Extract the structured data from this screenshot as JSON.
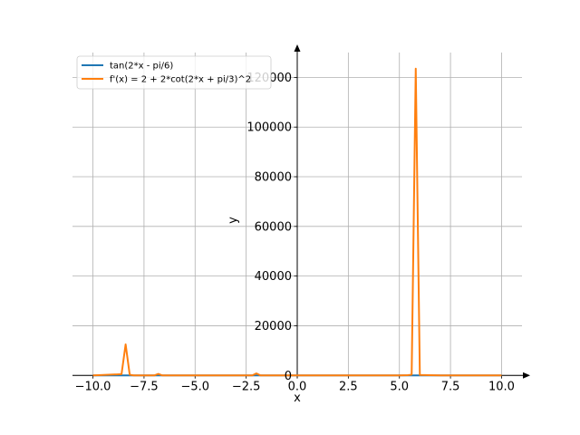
{
  "chart_data": {
    "type": "line",
    "xlabel": "x",
    "ylabel": "y",
    "xlim": [
      -11,
      11
    ],
    "ylim": [
      -1000,
      130000
    ],
    "grid": true,
    "legend_position": "top-left",
    "xticks": [
      -10.0,
      -7.5,
      -5.0,
      -2.5,
      0.0,
      2.5,
      5.0,
      7.5,
      10.0
    ],
    "xtick_labels": [
      "−10.0",
      "−7.5",
      "−5.0",
      "−2.5",
      "0.0",
      "2.5",
      "5.0",
      "7.5",
      "10.0"
    ],
    "yticks": [
      0,
      20000,
      40000,
      60000,
      80000,
      100000,
      120000
    ],
    "ytick_labels": [
      "0",
      "20000",
      "40000",
      "60000",
      "80000",
      "100000",
      "120000"
    ],
    "series": [
      {
        "name": "tan(2*x - pi/6)",
        "color": "#1f77b4",
        "x": [
          -10,
          -9,
          -8,
          -7,
          -6,
          -5,
          -4,
          -3,
          -2,
          -1,
          0,
          1,
          2,
          3,
          4,
          5,
          5.6,
          5.8,
          6,
          7,
          8,
          9,
          10
        ],
        "y": [
          0,
          0,
          0,
          0,
          0,
          0,
          0,
          0,
          0,
          0,
          0,
          0,
          0,
          0,
          0,
          0,
          0,
          0,
          0,
          0,
          0,
          0,
          0
        ]
      },
      {
        "name": "f'(x) = 2 + 2*cot(2*x + pi/3)^2",
        "color": "#ff7f0e",
        "x": [
          -10,
          -8.6,
          -8.4,
          -8.2,
          -8.0,
          -7.0,
          -6.8,
          -6.6,
          -5,
          -4,
          -3,
          -2.2,
          -2.0,
          -1.8,
          -1,
          0,
          1,
          2,
          3,
          4,
          5,
          5.4,
          5.6,
          5.8,
          6.0,
          7,
          8,
          9,
          10
        ],
        "y": [
          0,
          500,
          12500,
          300,
          0,
          0,
          600,
          0,
          0,
          0,
          0,
          0,
          800,
          0,
          0,
          0,
          0,
          0,
          0,
          0,
          0,
          100,
          300,
          123500,
          200,
          0,
          0,
          0,
          0
        ]
      }
    ]
  }
}
